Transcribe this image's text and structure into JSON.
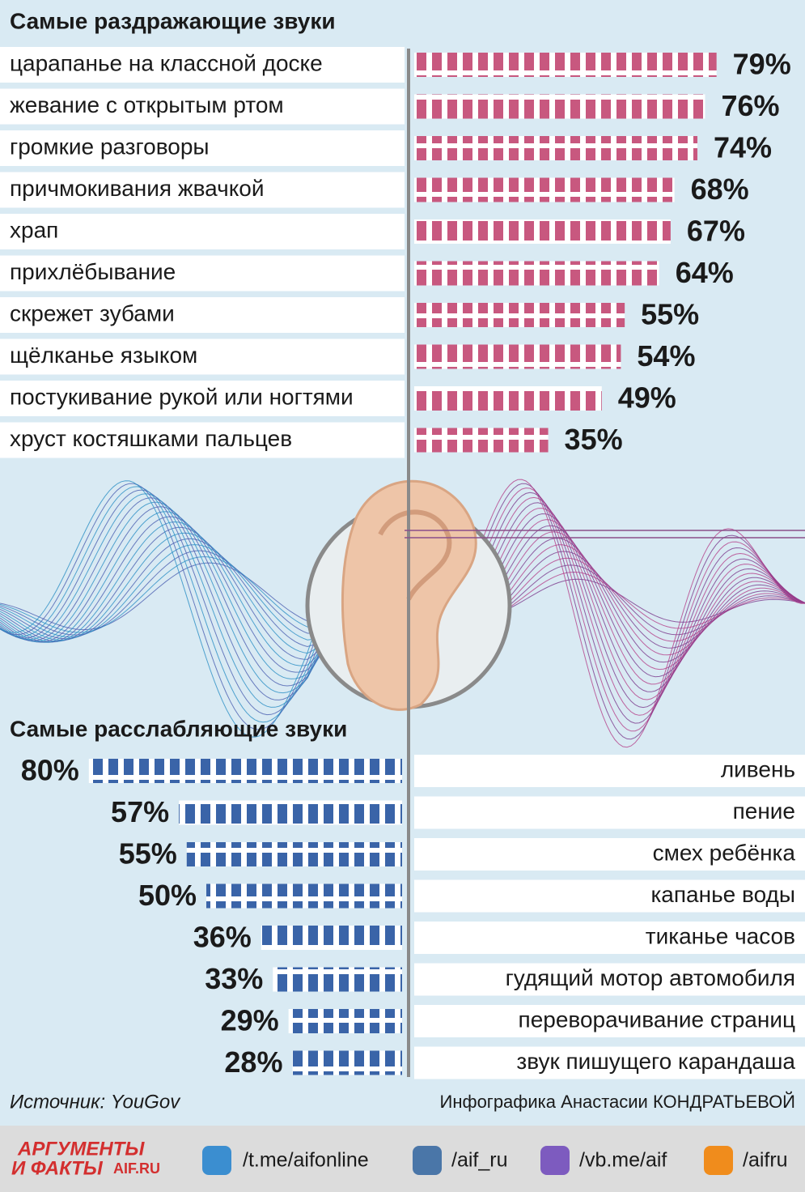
{
  "chart_data": [
    {
      "type": "bar",
      "title": "Самые раздражающие звуки",
      "color": "#c8587f",
      "categories": [
        "царапанье на классной доске",
        "жевание с открытым ртом",
        "громкие разговоры",
        "причмокивания жвачкой",
        "храп",
        "прихлёбывание",
        "скрежет зубами",
        "щёлканье языком",
        "постукивание рукой или ногтями",
        "хруст костяшками пальцев"
      ],
      "values": [
        79,
        76,
        74,
        68,
        67,
        64,
        55,
        54,
        49,
        35
      ],
      "value_labels": [
        "79%",
        "76%",
        "74%",
        "68%",
        "67%",
        "64%",
        "55%",
        "54%",
        "49%",
        "35%"
      ]
    },
    {
      "type": "bar",
      "title": "Самые расслабляющие звуки",
      "color": "#3a64a8",
      "categories": [
        "ливень",
        "пение",
        "смех ребёнка",
        "капанье воды",
        "тиканье часов",
        "гудящий мотор автомобиля",
        "переворачивание страниц",
        "звук пишущего карандаша"
      ],
      "values": [
        80,
        57,
        55,
        50,
        36,
        33,
        29,
        28
      ],
      "value_labels": [
        "80%",
        "57%",
        "55%",
        "50%",
        "36%",
        "33%",
        "29%",
        "28%"
      ]
    }
  ],
  "source": "Источник: YouGov",
  "credit": "Инфографика Анастасии КОНДРАТЬЕВОЙ",
  "footer": {
    "logo": [
      "АРГУМЕНТЫ",
      "И ФАКТЫ",
      "AIF.RU"
    ],
    "links": [
      "/t.me/aifonline",
      "/aif_ru",
      "/vb.me/aif",
      "/aifru"
    ]
  }
}
